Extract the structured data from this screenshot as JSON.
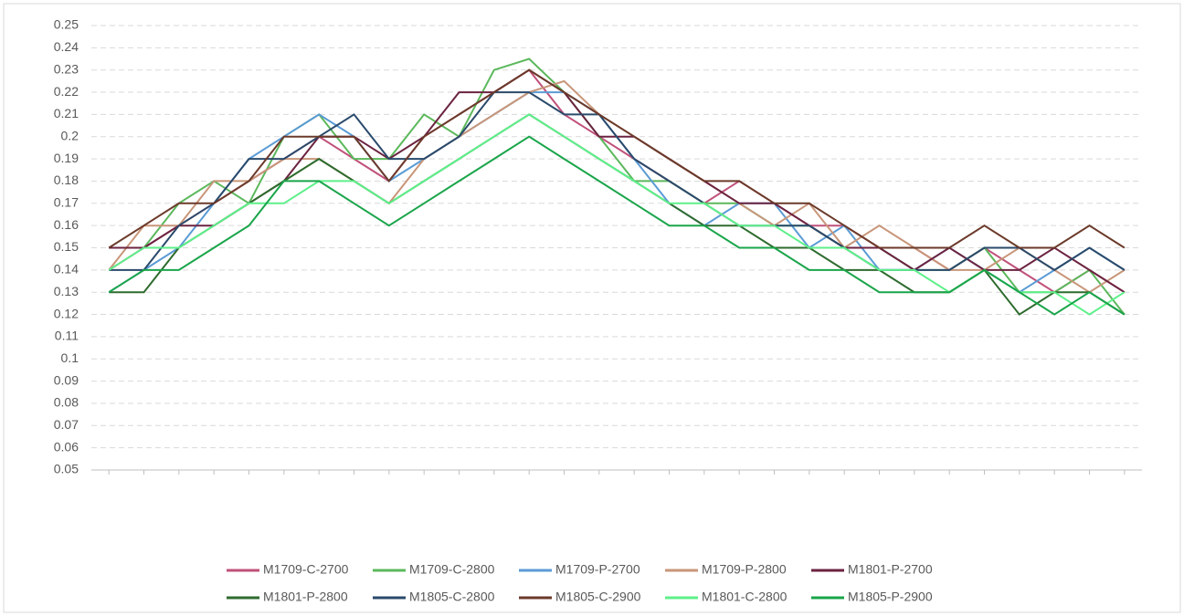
{
  "chart_data": {
    "type": "line",
    "categories": [
      null,
      null,
      null,
      null,
      null,
      null,
      null,
      null,
      null,
      null,
      null,
      null,
      null,
      null,
      null,
      null,
      null,
      null,
      null,
      null,
      null,
      null,
      null,
      null,
      null,
      null,
      null,
      null,
      null,
      null
    ],
    "ylim": [
      0.05,
      0.25
    ],
    "yticks": [
      0.05,
      0.06,
      0.07,
      0.08,
      0.09,
      0.1,
      0.11,
      0.12,
      0.13,
      0.14,
      0.15,
      0.16,
      0.17,
      0.18,
      0.19,
      0.2,
      0.21,
      0.22,
      0.23,
      0.24,
      0.25
    ],
    "grid": true,
    "legend": "bottom",
    "series": [
      {
        "name": "M1709-C-2700",
        "color": "#c0507a",
        "values": [
          0.14,
          0.15,
          0.16,
          0.17,
          0.18,
          0.19,
          0.2,
          0.19,
          0.18,
          0.2,
          0.21,
          0.22,
          0.23,
          0.21,
          0.2,
          0.19,
          0.18,
          0.17,
          0.18,
          0.17,
          0.16,
          0.16,
          0.15,
          0.15,
          0.14,
          0.15,
          0.14,
          0.13,
          0.14,
          0.13
        ]
      },
      {
        "name": "M1709-C-2800",
        "color": "#5cb85c",
        "values": [
          0.15,
          0.15,
          0.17,
          0.18,
          0.17,
          0.2,
          0.21,
          0.19,
          0.19,
          0.21,
          0.2,
          0.23,
          0.235,
          0.22,
          0.2,
          0.18,
          0.18,
          0.17,
          0.17,
          0.16,
          0.16,
          0.15,
          0.15,
          0.14,
          0.14,
          0.15,
          0.13,
          0.13,
          0.14,
          0.12
        ]
      },
      {
        "name": "M1709-P-2700",
        "color": "#5b9bd5",
        "values": [
          0.13,
          0.14,
          0.15,
          0.17,
          0.19,
          0.2,
          0.21,
          0.2,
          0.18,
          0.19,
          0.2,
          0.21,
          0.22,
          0.22,
          0.21,
          0.19,
          0.17,
          0.16,
          0.17,
          0.17,
          0.15,
          0.16,
          0.14,
          0.14,
          0.15,
          0.14,
          0.13,
          0.14,
          0.15,
          0.14
        ]
      },
      {
        "name": "M1709-P-2800",
        "color": "#c8967a",
        "values": [
          0.14,
          0.16,
          0.16,
          0.18,
          0.18,
          0.19,
          0.19,
          0.18,
          0.17,
          0.19,
          0.2,
          0.21,
          0.22,
          0.225,
          0.21,
          0.2,
          0.19,
          0.18,
          0.17,
          0.16,
          0.17,
          0.15,
          0.16,
          0.15,
          0.14,
          0.14,
          0.15,
          0.14,
          0.13,
          0.14
        ]
      },
      {
        "name": "M1801-P-2700",
        "color": "#6b2340",
        "values": [
          0.15,
          0.15,
          0.16,
          0.16,
          0.17,
          0.18,
          0.2,
          0.2,
          0.19,
          0.2,
          0.22,
          0.22,
          0.23,
          0.22,
          0.2,
          0.2,
          0.19,
          0.18,
          0.17,
          0.17,
          0.16,
          0.15,
          0.15,
          0.14,
          0.15,
          0.14,
          0.14,
          0.15,
          0.14,
          0.13
        ]
      },
      {
        "name": "M1801-P-2800",
        "color": "#2e6b2e",
        "values": [
          0.13,
          0.13,
          0.15,
          0.16,
          0.17,
          0.18,
          0.19,
          0.18,
          0.17,
          0.18,
          0.19,
          0.2,
          0.21,
          0.2,
          0.19,
          0.18,
          0.17,
          0.16,
          0.16,
          0.15,
          0.15,
          0.14,
          0.14,
          0.13,
          0.13,
          0.14,
          0.12,
          0.13,
          0.13,
          0.12
        ]
      },
      {
        "name": "M1805-C-2800",
        "color": "#2a4a6b",
        "values": [
          0.14,
          0.14,
          0.16,
          0.17,
          0.19,
          0.19,
          0.2,
          0.21,
          0.19,
          0.19,
          0.2,
          0.22,
          0.22,
          0.21,
          0.21,
          0.19,
          0.18,
          0.17,
          0.16,
          0.16,
          0.16,
          0.15,
          0.14,
          0.14,
          0.14,
          0.15,
          0.15,
          0.14,
          0.15,
          0.14
        ]
      },
      {
        "name": "M1805-C-2900",
        "color": "#6b3a2a",
        "values": [
          0.15,
          0.16,
          0.17,
          0.17,
          0.18,
          0.2,
          0.2,
          0.2,
          0.18,
          0.2,
          0.21,
          0.22,
          0.23,
          0.22,
          0.21,
          0.2,
          0.19,
          0.18,
          0.18,
          0.17,
          0.17,
          0.16,
          0.15,
          0.15,
          0.15,
          0.16,
          0.15,
          0.15,
          0.16,
          0.15
        ]
      },
      {
        "name": "M1801-C-2800",
        "color": "#5ef08a",
        "values": [
          0.14,
          0.15,
          0.15,
          0.16,
          0.17,
          0.17,
          0.18,
          0.18,
          0.17,
          0.18,
          0.19,
          0.2,
          0.21,
          0.2,
          0.19,
          0.18,
          0.17,
          0.17,
          0.16,
          0.16,
          0.15,
          0.15,
          0.14,
          0.14,
          0.13,
          0.14,
          0.13,
          0.13,
          0.12,
          0.13
        ]
      },
      {
        "name": "M1805-P-2900",
        "color": "#1aa54a",
        "values": [
          0.13,
          0.14,
          0.14,
          0.15,
          0.16,
          0.18,
          0.18,
          0.17,
          0.16,
          0.17,
          0.18,
          0.19,
          0.2,
          0.19,
          0.18,
          0.17,
          0.16,
          0.16,
          0.15,
          0.15,
          0.14,
          0.14,
          0.13,
          0.13,
          0.13,
          0.14,
          0.13,
          0.12,
          0.13,
          0.12
        ]
      }
    ]
  }
}
